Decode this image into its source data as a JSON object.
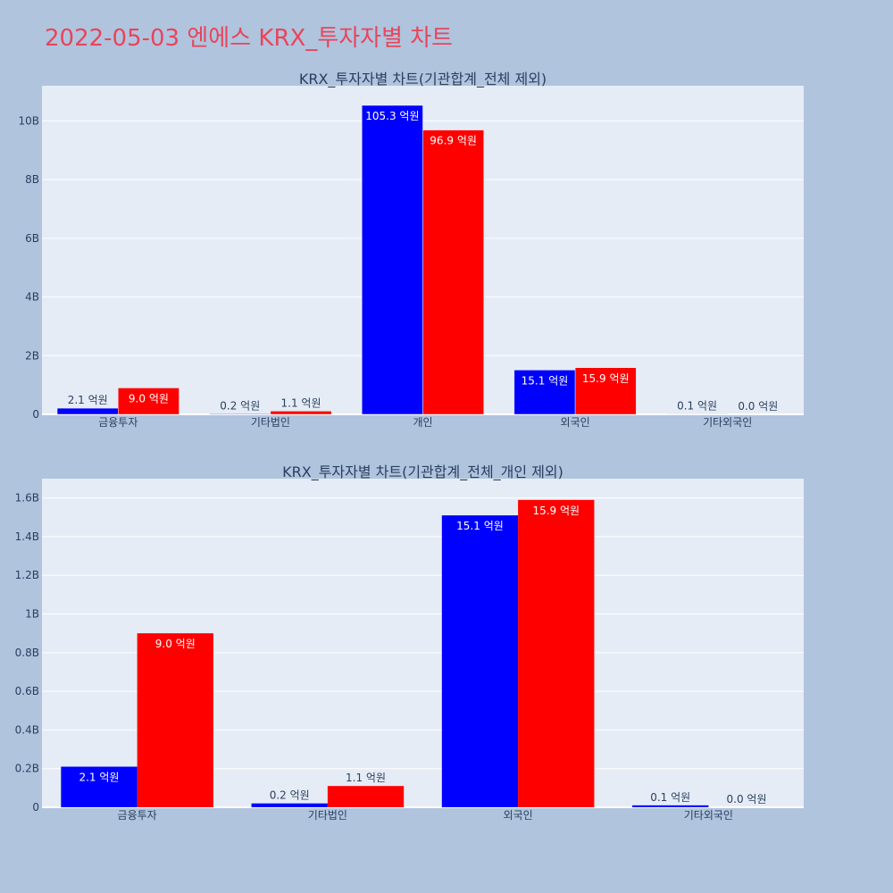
{
  "page": {
    "title": "2022-05-03 엔에스 KRX_투자자별 차트"
  },
  "colors": {
    "buy": "#0000ff",
    "sell": "#ff0000",
    "plot_bg": "#e5ecf6",
    "grid": "#ffffff",
    "text": "#2a3f5f"
  },
  "chart_data": [
    {
      "type": "bar",
      "title": "KRX_투자자별 차트(기관합계_전체 제외)",
      "categories": [
        "금융투자",
        "기타법인",
        "개인",
        "외국인",
        "기타외국인"
      ],
      "series": [
        {
          "values": [
            210000000,
            20000000,
            10530000000,
            1510000000,
            10000000
          ],
          "labels": [
            "2.1 억원",
            "0.2 억원",
            "105.3 억원",
            "15.1 억원",
            "0.1 억원"
          ]
        },
        {
          "values": [
            900000000,
            110000000,
            9690000000,
            1590000000,
            0
          ],
          "labels": [
            "9.0 억원",
            "1.1 억원",
            "96.9 억원",
            "15.9 억원",
            "0.0 억원"
          ]
        }
      ],
      "ylim": [
        0,
        11200000000
      ],
      "yticks": [
        0,
        2000000000,
        4000000000,
        6000000000,
        8000000000,
        10000000000
      ],
      "yticklabels": [
        "0",
        "2B",
        "4B",
        "6B",
        "8B",
        "10B"
      ],
      "grid": true
    },
    {
      "type": "bar",
      "title": "KRX_투자자별 차트(기관합계_전체_개인 제외)",
      "categories": [
        "금융투자",
        "기타법인",
        "외국인",
        "기타외국인"
      ],
      "series": [
        {
          "values": [
            210000000,
            20000000,
            1510000000,
            10000000
          ],
          "labels": [
            "2.1 억원",
            "0.2 억원",
            "15.1 억원",
            "0.1 억원"
          ]
        },
        {
          "values": [
            900000000,
            110000000,
            1590000000,
            0
          ],
          "labels": [
            "9.0 억원",
            "1.1 억원",
            "15.9 억원",
            "0.0 억원"
          ]
        }
      ],
      "ylim": [
        0,
        1700000000
      ],
      "yticks": [
        0,
        200000000,
        400000000,
        600000000,
        800000000,
        1000000000,
        1200000000,
        1400000000,
        1600000000
      ],
      "yticklabels": [
        "0",
        "0.2B",
        "0.4B",
        "0.6B",
        "0.8B",
        "1B",
        "1.2B",
        "1.4B",
        "1.6B"
      ],
      "grid": true
    }
  ]
}
